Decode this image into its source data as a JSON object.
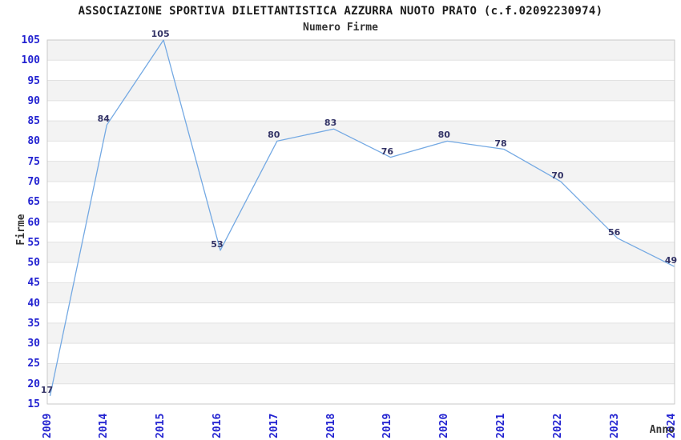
{
  "chart_data": {
    "type": "line",
    "title": "ASSOCIAZIONE SPORTIVA DILETTANTISTICA AZZURRA NUOTO PRATO (c.f.02092230974)",
    "subtitle": "Numero Firme",
    "xlabel": "Anno",
    "ylabel": "Firme",
    "categories": [
      "2009",
      "2014",
      "2015",
      "2016",
      "2017",
      "2018",
      "2019",
      "2020",
      "2021",
      "2022",
      "2023",
      "2024"
    ],
    "values": [
      17,
      84,
      105,
      53,
      80,
      83,
      76,
      80,
      78,
      70,
      56,
      49
    ],
    "ylim": [
      15,
      105
    ],
    "ytick_step": 5,
    "grid": "horizontal, alternating shaded bands every 5 units",
    "legend_position": "none",
    "data_labels": "shown above-left of each point",
    "colors": {
      "line": "#74a9e3",
      "tick_label": "#2323d1",
      "data_label": "#333366",
      "band_fill": "#f3f3f3",
      "grid_line": "#e2e2e2",
      "plot_border": "#c9c9c9",
      "text": "#333333",
      "background": "#ffffff"
    }
  }
}
